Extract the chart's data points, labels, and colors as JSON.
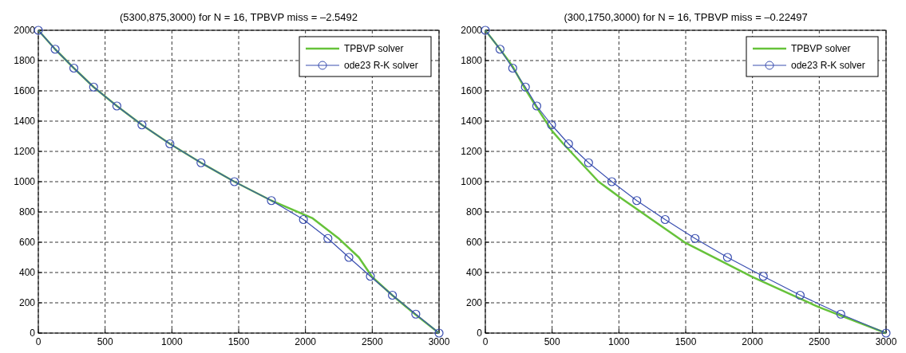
{
  "chart_data": [
    {
      "type": "line",
      "title": "(5300,875,3000) for N = 16, TPBVP miss = –2.5492",
      "xlim": [
        0,
        3000
      ],
      "ylim": [
        0,
        2000
      ],
      "xticks": [
        0,
        500,
        1000,
        1500,
        2000,
        2500,
        3000
      ],
      "yticks": [
        0,
        200,
        400,
        600,
        800,
        1000,
        1200,
        1400,
        1600,
        1800,
        2000
      ],
      "grid": true,
      "legend": "top right",
      "line_style": "solid",
      "series": [
        {
          "name": "TPBVP solver",
          "color": "#66c23a",
          "marker": "none",
          "x": [
            0,
            126,
            266,
            414,
            588,
            776,
            985,
            1218,
            1468,
            1745,
            2050,
            2245,
            2400,
            2500,
            2650,
            2820,
            3000
          ],
          "values": [
            2000,
            1875,
            1750,
            1625,
            1500,
            1375,
            1250,
            1125,
            1000,
            875,
            760,
            628,
            500,
            370,
            250,
            125,
            0
          ]
        },
        {
          "name": "ode23 R-K solver",
          "color": "#3a4fb0",
          "marker": "circle",
          "x": [
            0,
            126,
            266,
            414,
            588,
            776,
            985,
            1218,
            1468,
            1745,
            1985,
            2168,
            2325,
            2486,
            2651,
            2826,
            3000
          ],
          "values": [
            2000,
            1875,
            1750,
            1625,
            1500,
            1375,
            1250,
            1125,
            1000,
            875,
            750,
            625,
            500,
            375,
            250,
            125,
            0
          ]
        }
      ]
    },
    {
      "type": "line",
      "title": "(300,1750,3000) for N = 16, TPBVP miss = –0.22497",
      "xlim": [
        0,
        3000
      ],
      "ylim": [
        0,
        2000
      ],
      "xticks": [
        0,
        500,
        1000,
        1500,
        2000,
        2500,
        3000
      ],
      "yticks": [
        0,
        200,
        400,
        600,
        800,
        1000,
        1200,
        1400,
        1600,
        1800,
        2000
      ],
      "grid": true,
      "legend": "top right",
      "line_style": "solid",
      "series": [
        {
          "name": "TPBVP solver",
          "color": "#66c23a",
          "marker": "none",
          "x": [
            0,
            110,
            205,
            300,
            385,
            500,
            584,
            848,
            1002,
            1500,
            2000,
            2500,
            3000
          ],
          "values": [
            2000,
            1875,
            1760,
            1610,
            1490,
            1335,
            1250,
            1000,
            900,
            595,
            370,
            170,
            0
          ]
        },
        {
          "name": "ode23 R-K solver",
          "color": "#3a4fb0",
          "marker": "circle",
          "x": [
            0,
            110,
            205,
            300,
            385,
            496,
            623,
            773,
            947,
            1134,
            1346,
            1570,
            1813,
            2081,
            2357,
            2661,
            3000
          ],
          "values": [
            2000,
            1875,
            1750,
            1625,
            1500,
            1375,
            1250,
            1125,
            1000,
            875,
            750,
            625,
            500,
            375,
            250,
            125,
            0
          ]
        }
      ]
    }
  ]
}
